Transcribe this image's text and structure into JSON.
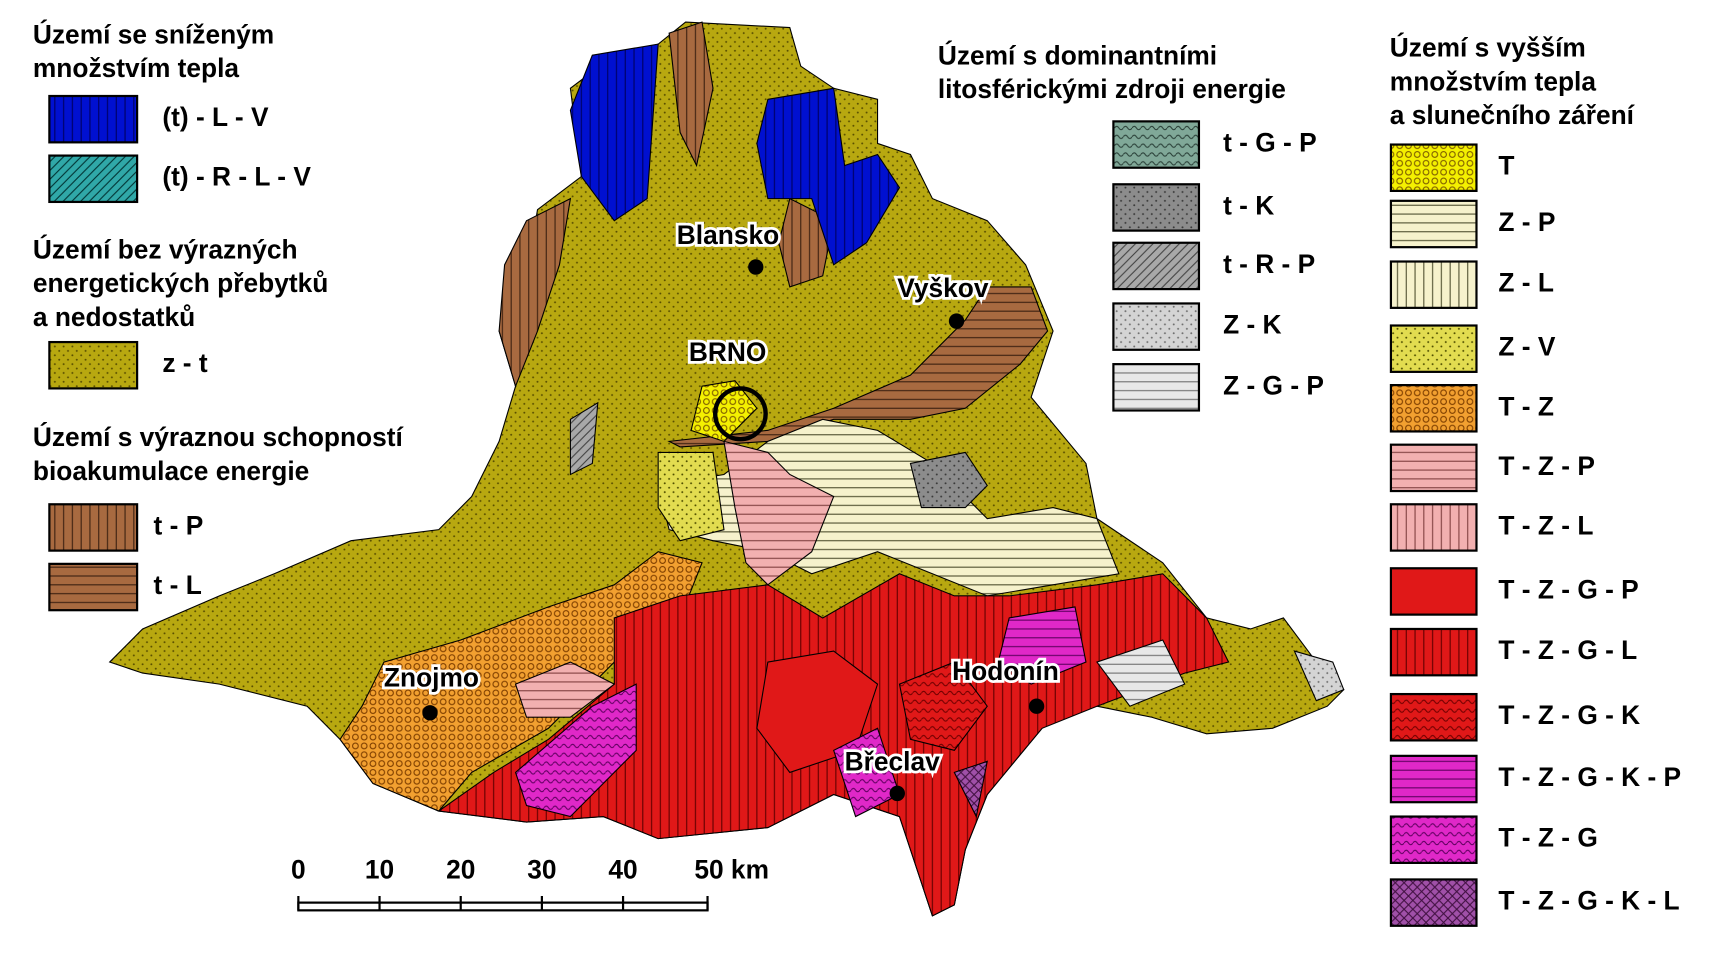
{
  "legend": {
    "groups": [
      {
        "title": [
          "Území se sníženým",
          "množstvím tepla"
        ],
        "items": [
          "(t) - L - V",
          "(t) - R - L - V"
        ]
      },
      {
        "title": [
          "Území bez výrazných",
          "energetických přebytků",
          "a nedostatků"
        ],
        "items": [
          "z - t"
        ]
      },
      {
        "title": [
          "Území s výraznou schopností",
          "bioakumulace energie"
        ],
        "items": [
          "t - P",
          "t - L"
        ]
      },
      {
        "title": [
          "Území s dominantními",
          "litosférickými zdroji energie"
        ],
        "items": [
          "t - G - P",
          "t - K",
          "t - R - P",
          "Z - K",
          "Z - G - P"
        ]
      },
      {
        "title": [
          "Území s vyšším",
          "množstvím tepla",
          "a slunečního záření"
        ],
        "items": [
          "T",
          "Z - P",
          "Z - L",
          "Z - V",
          "T - Z",
          "T - Z - P",
          "T - Z - L",
          "T - Z - G - P",
          "T - Z - G - L",
          "T - Z - G - K",
          "T - Z - G - K - P",
          "T - Z - G",
          "T - Z - G - K - L"
        ]
      }
    ]
  },
  "cities": [
    {
      "name": "Blansko"
    },
    {
      "name": "Vyškov"
    },
    {
      "name": "BRNO"
    },
    {
      "name": "Znojmo"
    },
    {
      "name": "Hodonín"
    },
    {
      "name": "Břeclav"
    }
  ],
  "scale": [
    "0",
    "10",
    "20",
    "30",
    "40",
    "50 km"
  ]
}
